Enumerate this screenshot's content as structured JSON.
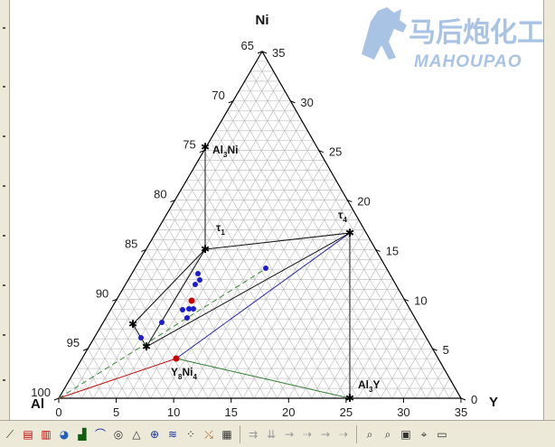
{
  "diagram": {
    "vertices": {
      "top": "Ni",
      "left": "Al",
      "right": "Y"
    },
    "bottom_ticks": [
      "0",
      "5",
      "10",
      "15",
      "20",
      "25",
      "30",
      "35"
    ],
    "left_ticks": [
      "65",
      "70",
      "75",
      "80",
      "85",
      "90",
      "95",
      "100"
    ],
    "right_ticks": [
      "35",
      "30",
      "25",
      "20",
      "15",
      "10",
      "5",
      "0"
    ],
    "phases": {
      "al3ni": {
        "base": "Al",
        "sub": "3",
        "rest": "Ni"
      },
      "tau1": {
        "base": "τ",
        "sub": "1"
      },
      "tau4": {
        "base": "τ",
        "sub": "4"
      },
      "y8ni4": {
        "base": "Y",
        "sub1": "8",
        "mid": "Ni",
        "sub2": "4"
      },
      "al3y": {
        "base": "Al",
        "sub": "3",
        "rest": "Y"
      }
    },
    "colors": {
      "grid": "#b8b8b8",
      "frame": "#000000",
      "tie_black": "#111111",
      "tie_blue": "#2a2aa8",
      "tie_red": "#c01010",
      "tie_green": "#2e7d2e",
      "dash_green": "#3a8a3a",
      "point_blue": "#1c1cd0",
      "point_red": "#cc0000"
    }
  },
  "watermark": {
    "chinese": "马后炮化工",
    "english": "MAHOUPAO"
  },
  "toolbar": {
    "icons": [
      "line-tool-icon",
      "bar-chart-icon",
      "column-chart-icon",
      "pie-chart-icon",
      "area-chart-icon",
      "curve-icon",
      "contour-icon",
      "triangle-plot-icon",
      "polar-icon",
      "spectrum-icon",
      "scatter-matrix-icon",
      "vector-icon",
      "arrow-right-icon",
      "arrow-down-icon",
      "arrow-right-2-icon",
      "arrow-right-3-icon",
      "zoom-icon",
      "zoom-2-icon",
      "layer-icon",
      "data-reader-icon",
      "window-icon"
    ]
  }
}
